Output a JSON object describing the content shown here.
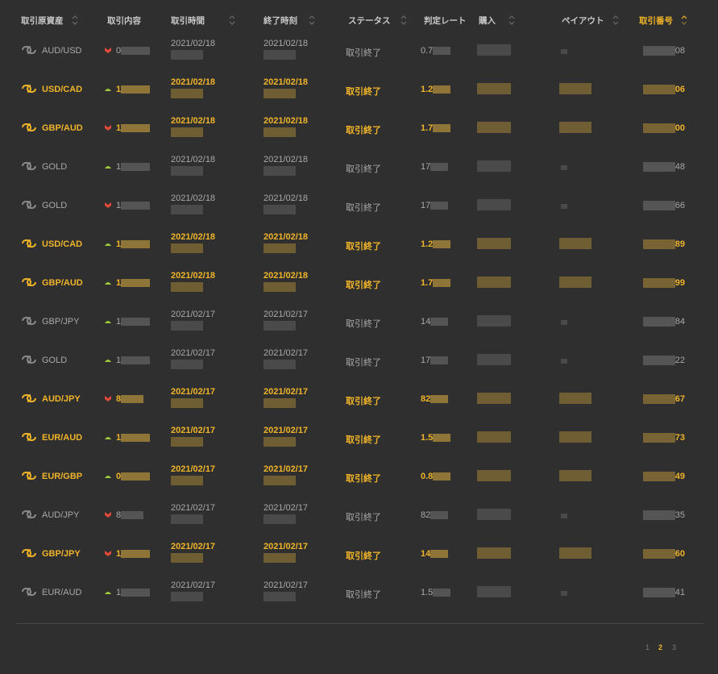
{
  "header": {
    "columns": [
      {
        "label": "取引原資産",
        "sortable": true
      },
      {
        "label": "取引内容",
        "sortable": false
      },
      {
        "label": "取引時間",
        "sortable": true
      },
      {
        "label": "終了時刻",
        "sortable": true
      },
      {
        "label": "ステータス",
        "sortable": true
      },
      {
        "label": "判定レート",
        "sortable": false
      },
      {
        "label": "購入",
        "sortable": true
      },
      {
        "label": "ペイアウト",
        "sortable": true
      },
      {
        "label": "取引番号",
        "sortable": true,
        "active": true
      }
    ]
  },
  "colors": {
    "background": "#2f2f2f",
    "win_accent": "#f0b429",
    "neutral_text": "#a9a9a9",
    "direction_up": "#9ccc3c",
    "direction_down": "#e04a3a"
  },
  "rows": [
    {
      "asset": "AUD/USD",
      "result": "neutral",
      "direction": "down",
      "content": "0",
      "open_time": "2021/02/18",
      "close_time": "2021/02/18",
      "status": "取引終了",
      "rate": "0.7",
      "id_suffix": "08"
    },
    {
      "asset": "USD/CAD",
      "result": "win",
      "direction": "up",
      "content": "1",
      "open_time": "2021/02/18",
      "close_time": "2021/02/18",
      "status": "取引終了",
      "rate": "1.2",
      "id_suffix": "06"
    },
    {
      "asset": "GBP/AUD",
      "result": "win",
      "direction": "down",
      "content": "1",
      "open_time": "2021/02/18",
      "close_time": "2021/02/18",
      "status": "取引終了",
      "rate": "1.7",
      "id_suffix": "00"
    },
    {
      "asset": "GOLD",
      "result": "neutral",
      "direction": "up",
      "content": "1",
      "open_time": "2021/02/18",
      "close_time": "2021/02/18",
      "status": "取引終了",
      "rate": "17",
      "id_suffix": "48"
    },
    {
      "asset": "GOLD",
      "result": "neutral",
      "direction": "down",
      "content": "1",
      "open_time": "2021/02/18",
      "close_time": "2021/02/18",
      "status": "取引終了",
      "rate": "17",
      "id_suffix": "66"
    },
    {
      "asset": "USD/CAD",
      "result": "win",
      "direction": "up",
      "content": "1",
      "open_time": "2021/02/18",
      "close_time": "2021/02/18",
      "status": "取引終了",
      "rate": "1.2",
      "id_suffix": "89"
    },
    {
      "asset": "GBP/AUD",
      "result": "win",
      "direction": "up",
      "content": "1",
      "open_time": "2021/02/18",
      "close_time": "2021/02/18",
      "status": "取引終了",
      "rate": "1.7",
      "id_suffix": "99"
    },
    {
      "asset": "GBP/JPY",
      "result": "neutral",
      "direction": "up",
      "content": "1",
      "open_time": "2021/02/17",
      "close_time": "2021/02/17",
      "status": "取引終了",
      "rate": "14",
      "id_suffix": "84"
    },
    {
      "asset": "GOLD",
      "result": "neutral",
      "direction": "up",
      "content": "1",
      "open_time": "2021/02/17",
      "close_time": "2021/02/17",
      "status": "取引終了",
      "rate": "17",
      "id_suffix": "22"
    },
    {
      "asset": "AUD/JPY",
      "result": "win",
      "direction": "down",
      "content": "8",
      "open_time": "2021/02/17",
      "close_time": "2021/02/17",
      "status": "取引終了",
      "rate": "82",
      "id_suffix": "67"
    },
    {
      "asset": "EUR/AUD",
      "result": "win",
      "direction": "up",
      "content": "1",
      "open_time": "2021/02/17",
      "close_time": "2021/02/17",
      "status": "取引終了",
      "rate": "1.5",
      "id_suffix": "73"
    },
    {
      "asset": "EUR/GBP",
      "result": "win",
      "direction": "up",
      "content": "0",
      "open_time": "2021/02/17",
      "close_time": "2021/02/17",
      "status": "取引終了",
      "rate": "0.8",
      "id_suffix": "49"
    },
    {
      "asset": "AUD/JPY",
      "result": "neutral",
      "direction": "down",
      "content": "8",
      "open_time": "2021/02/17",
      "close_time": "2021/02/17",
      "status": "取引終了",
      "rate": "82",
      "id_suffix": "35"
    },
    {
      "asset": "GBP/JPY",
      "result": "win",
      "direction": "down",
      "content": "1",
      "open_time": "2021/02/17",
      "close_time": "2021/02/17",
      "status": "取引終了",
      "rate": "14",
      "id_suffix": "60"
    },
    {
      "asset": "EUR/AUD",
      "result": "neutral",
      "direction": "up",
      "content": "1",
      "open_time": "2021/02/17",
      "close_time": "2021/02/17",
      "status": "取引終了",
      "rate": "1.5",
      "id_suffix": "41"
    }
  ],
  "pagination": {
    "pages": [
      "1",
      "2",
      "3"
    ],
    "current": "2"
  }
}
